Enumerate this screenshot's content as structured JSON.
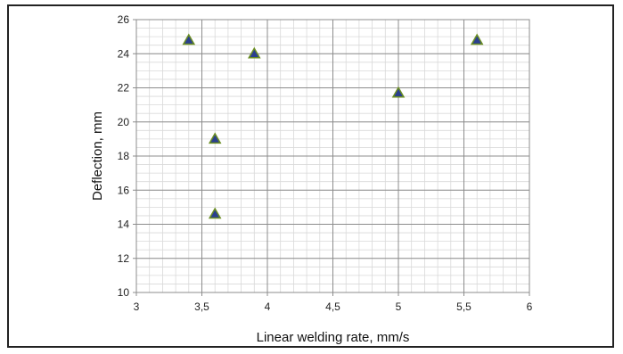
{
  "chart_data": {
    "type": "scatter",
    "xlabel": "Linear welding rate, mm/s",
    "ylabel": "Deflection, mm",
    "xlim": [
      3,
      6
    ],
    "ylim": [
      10,
      26
    ],
    "x_ticks": [
      "3",
      "3,5",
      "4",
      "4,5",
      "5",
      "5,5",
      "6"
    ],
    "y_ticks": [
      "10",
      "12",
      "14",
      "16",
      "18",
      "20",
      "22",
      "24",
      "26"
    ],
    "grid": true,
    "legend": "none",
    "marker": "triangle",
    "marker_color": "#2a3f8f",
    "marker_edge_color": "#6b8e23",
    "series": [
      {
        "points": [
          {
            "x": 3.4,
            "y": 24.8
          },
          {
            "x": 3.6,
            "y": 19.0
          },
          {
            "x": 3.6,
            "y": 14.6
          },
          {
            "x": 3.9,
            "y": 24.0
          },
          {
            "x": 5.0,
            "y": 21.7
          },
          {
            "x": 5.6,
            "y": 24.8
          }
        ]
      }
    ]
  }
}
